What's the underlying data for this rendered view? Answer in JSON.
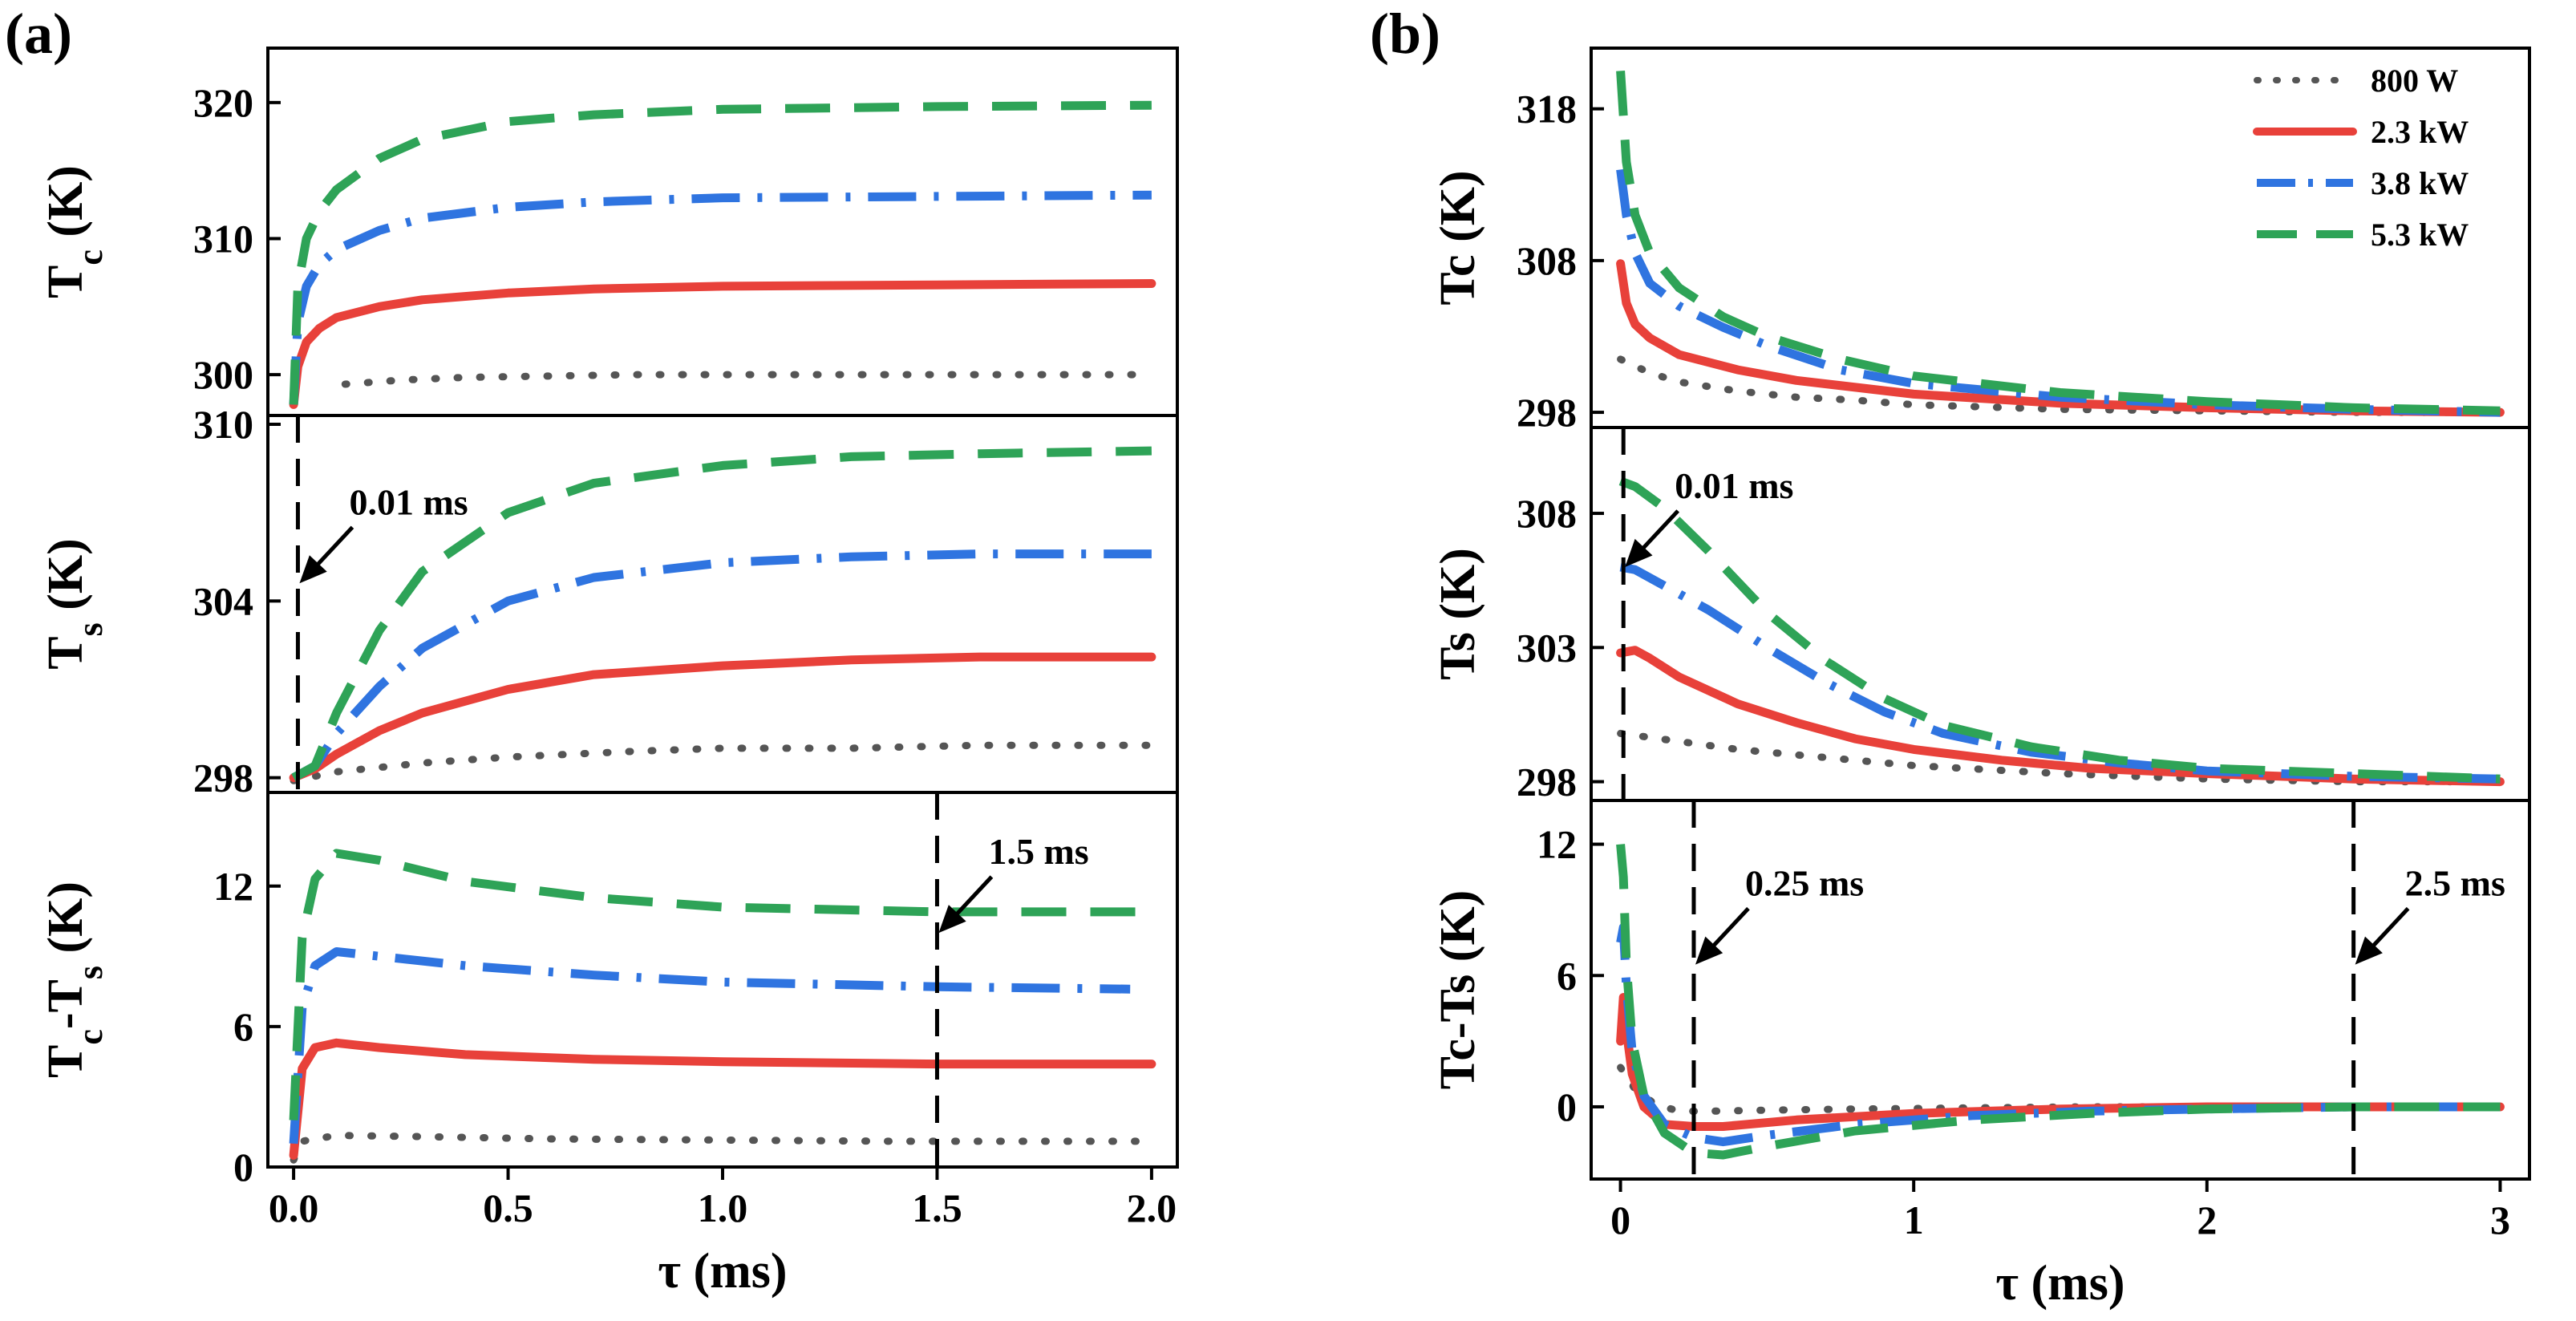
{
  "chart_data": [
    {
      "id": "a-top",
      "type": "line",
      "panel_label": "(a)",
      "ylabel_main": "T",
      "ylabel_sub": "c",
      "ylabel_unit": " (K)",
      "xlabel": "",
      "ylim": [
        297,
        324
      ],
      "xlim": [
        -0.06,
        2.06
      ],
      "yticks": [
        300,
        310,
        320
      ],
      "xticks": [],
      "xtick_labels": [],
      "series": [
        {
          "name": "800 W",
          "style": "dot",
          "color": "#555555",
          "x": [
            0.12,
            0.25,
            0.4,
            0.6,
            0.8,
            1.0,
            1.2,
            1.4,
            1.6,
            1.8,
            2.0
          ],
          "y": [
            299.3,
            299.6,
            299.8,
            299.9,
            300.0,
            300.0,
            300.0,
            300.0,
            300.0,
            300.0,
            300.0
          ]
        },
        {
          "name": "2.3 kW",
          "style": "solid",
          "color": "#e8413a",
          "x": [
            0.0,
            0.01,
            0.03,
            0.06,
            0.1,
            0.2,
            0.3,
            0.5,
            0.7,
            1.0,
            1.5,
            2.0
          ],
          "y": [
            297.8,
            300.6,
            302.4,
            303.4,
            304.2,
            305.0,
            305.5,
            306.0,
            306.3,
            306.5,
            306.6,
            306.7
          ]
        },
        {
          "name": "3.8 kW",
          "style": "dashdot",
          "color": "#2f74e0",
          "x": [
            0.0,
            0.01,
            0.03,
            0.06,
            0.1,
            0.2,
            0.3,
            0.5,
            0.7,
            1.0,
            1.5,
            2.0
          ],
          "y": [
            297.8,
            303.8,
            306.5,
            308.1,
            309.2,
            310.6,
            311.5,
            312.3,
            312.7,
            313.0,
            313.1,
            313.2
          ]
        },
        {
          "name": "5.3 kW",
          "style": "dash",
          "color": "#2ea357",
          "x": [
            0.0,
            0.01,
            0.03,
            0.06,
            0.1,
            0.2,
            0.3,
            0.5,
            0.7,
            1.0,
            1.5,
            2.0
          ],
          "y": [
            297.8,
            306.5,
            310.0,
            312.0,
            313.6,
            315.9,
            317.3,
            318.6,
            319.1,
            319.5,
            319.7,
            319.8
          ]
        }
      ]
    },
    {
      "id": "a-mid",
      "type": "line",
      "ylabel_main": "T",
      "ylabel_sub": "s",
      "ylabel_unit": " (K)",
      "xlabel": "",
      "ylim": [
        297.5,
        310.3
      ],
      "xlim": [
        -0.06,
        2.06
      ],
      "yticks": [
        298,
        304,
        310
      ],
      "xticks": [],
      "xtick_labels": [],
      "series": [
        {
          "name": "800 W",
          "style": "dot",
          "color": "#555555",
          "x": [
            0.0,
            0.1,
            0.3,
            0.5,
            0.8,
            1.0,
            1.3,
            1.6,
            2.0
          ],
          "y": [
            297.9,
            298.2,
            298.5,
            298.7,
            298.9,
            299.0,
            299.0,
            299.1,
            299.1
          ]
        },
        {
          "name": "2.3 kW",
          "style": "solid",
          "color": "#e8413a",
          "x": [
            0.0,
            0.05,
            0.1,
            0.2,
            0.3,
            0.5,
            0.7,
            1.0,
            1.3,
            1.6,
            2.0
          ],
          "y": [
            298.0,
            298.3,
            298.8,
            299.6,
            300.2,
            301.0,
            301.5,
            301.8,
            302.0,
            302.1,
            302.1
          ]
        },
        {
          "name": "3.8 kW",
          "style": "dashdot",
          "color": "#2f74e0",
          "x": [
            0.0,
            0.05,
            0.1,
            0.2,
            0.3,
            0.5,
            0.7,
            1.0,
            1.3,
            1.6,
            2.0
          ],
          "y": [
            298.0,
            298.4,
            299.5,
            301.1,
            302.4,
            304.0,
            304.8,
            305.3,
            305.5,
            305.6,
            305.6
          ]
        },
        {
          "name": "5.3 kW",
          "style": "dash",
          "color": "#2ea357",
          "x": [
            0.0,
            0.05,
            0.1,
            0.2,
            0.3,
            0.5,
            0.7,
            1.0,
            1.3,
            1.6,
            2.0
          ],
          "y": [
            298.0,
            298.4,
            300.2,
            303.0,
            305.0,
            307.0,
            308.0,
            308.6,
            308.9,
            309.0,
            309.1
          ]
        }
      ],
      "annotation": {
        "text": "0.01 ms",
        "vline_x": 0.01,
        "arrow_y": 304.6
      }
    },
    {
      "id": "a-bot",
      "type": "line",
      "ylabel_main": "T",
      "ylabel_sub": "c",
      "ylabel_mid": "-T",
      "ylabel_sub2": "s",
      "ylabel_unit": " (K)",
      "xlabel": "τ (ms)",
      "ylim": [
        0,
        16
      ],
      "xlim": [
        -0.06,
        2.06
      ],
      "yticks": [
        0,
        6,
        12
      ],
      "xticks": [
        0,
        0.5,
        1.0,
        1.5,
        2.0
      ],
      "xtick_labels": [
        "0.0",
        "0.5",
        "1.0",
        "1.5",
        "2.0"
      ],
      "series": [
        {
          "name": "800 W",
          "style": "dot",
          "color": "#555555",
          "x": [
            0.0,
            0.02,
            0.1,
            0.3,
            0.6,
            1.0,
            1.4,
            1.8,
            2.0
          ],
          "y": [
            0.3,
            1.1,
            1.35,
            1.3,
            1.2,
            1.15,
            1.1,
            1.1,
            1.1
          ]
        },
        {
          "name": "2.3 kW",
          "style": "solid",
          "color": "#e8413a",
          "x": [
            0.0,
            0.02,
            0.05,
            0.1,
            0.2,
            0.4,
            0.7,
            1.0,
            1.5,
            2.0
          ],
          "y": [
            0.5,
            4.2,
            5.1,
            5.3,
            5.1,
            4.8,
            4.6,
            4.5,
            4.4,
            4.4
          ]
        },
        {
          "name": "3.8 kW",
          "style": "dashdot",
          "color": "#2f74e0",
          "x": [
            0.0,
            0.02,
            0.05,
            0.1,
            0.2,
            0.4,
            0.7,
            1.0,
            1.5,
            1.95
          ],
          "y": [
            1.0,
            6.8,
            8.6,
            9.2,
            9.0,
            8.6,
            8.2,
            7.9,
            7.7,
            7.6
          ]
        },
        {
          "name": "5.3 kW",
          "style": "dash",
          "color": "#2ea357",
          "x": [
            0.0,
            0.02,
            0.05,
            0.1,
            0.2,
            0.4,
            0.7,
            1.0,
            1.5,
            2.0
          ],
          "y": [
            2.0,
            9.8,
            12.3,
            13.4,
            13.1,
            12.2,
            11.5,
            11.1,
            10.9,
            10.9
          ]
        }
      ],
      "annotation": {
        "text": "1.5 ms",
        "vline_x": 1.5,
        "arrow_y": 10.0
      }
    },
    {
      "id": "b-top",
      "type": "line",
      "panel_label": "(b)",
      "ylabel_main": "Tc",
      "ylabel_unit": " (K)",
      "xlabel": "",
      "ylim": [
        297,
        322
      ],
      "xlim": [
        -0.1,
        3.1
      ],
      "yticks": [
        298,
        308,
        318
      ],
      "xticks": [],
      "xtick_labels": [],
      "legend": {
        "placement": "top-right",
        "entries": [
          "800 W",
          "2.3 kW",
          "3.8 kW",
          "5.3 kW"
        ]
      },
      "series": [
        {
          "name": "800 W",
          "style": "dot",
          "color": "#555555",
          "x": [
            0.0,
            0.1,
            0.2,
            0.4,
            0.6,
            0.8,
            1.0,
            1.5,
            2.0,
            2.5,
            3.0
          ],
          "y": [
            301.5,
            300.6,
            300.0,
            299.4,
            299.0,
            298.8,
            298.5,
            298.2,
            298.1,
            298.0,
            298.0
          ]
        },
        {
          "name": "2.3 kW",
          "style": "solid",
          "color": "#e8413a",
          "x": [
            0.0,
            0.02,
            0.05,
            0.1,
            0.2,
            0.4,
            0.6,
            1.0,
            1.5,
            2.0,
            2.5,
            3.0
          ],
          "y": [
            307.8,
            305.2,
            303.8,
            302.9,
            301.8,
            300.8,
            300.1,
            299.2,
            298.6,
            298.3,
            298.1,
            298.0
          ]
        },
        {
          "name": "3.8 kW",
          "style": "dashdot",
          "color": "#2f74e0",
          "x": [
            0.0,
            0.02,
            0.05,
            0.1,
            0.2,
            0.35,
            0.5,
            0.75,
            1.0,
            1.5,
            2.0,
            2.5,
            3.0
          ],
          "y": [
            314.0,
            311.0,
            308.5,
            306.5,
            305.0,
            303.6,
            302.4,
            300.8,
            299.9,
            299.0,
            298.5,
            298.2,
            298.0
          ]
        },
        {
          "name": "5.3 kW",
          "style": "dash",
          "color": "#2ea357",
          "x": [
            0.0,
            0.02,
            0.05,
            0.1,
            0.2,
            0.35,
            0.5,
            0.75,
            1.0,
            1.5,
            2.0,
            2.5,
            3.0
          ],
          "y": [
            320.5,
            314.5,
            311.0,
            308.5,
            306.2,
            304.3,
            303.0,
            301.5,
            300.4,
            299.3,
            298.7,
            298.3,
            298.1
          ]
        }
      ]
    },
    {
      "id": "b-mid",
      "type": "line",
      "ylabel_main": "Ts",
      "ylabel_unit": " (K)",
      "xlabel": "",
      "ylim": [
        297.3,
        311.2
      ],
      "xlim": [
        -0.1,
        3.1
      ],
      "yticks": [
        298,
        303,
        308
      ],
      "xticks": [],
      "xtick_labels": [],
      "series": [
        {
          "name": "800 W",
          "style": "dot",
          "color": "#555555",
          "x": [
            0.0,
            0.2,
            0.4,
            0.7,
            1.0,
            1.5,
            2.0,
            2.5,
            3.0
          ],
          "y": [
            299.8,
            299.5,
            299.2,
            298.9,
            298.6,
            298.3,
            298.1,
            298.0,
            298.0
          ]
        },
        {
          "name": "2.3 kW",
          "style": "solid",
          "color": "#e8413a",
          "x": [
            0.0,
            0.05,
            0.1,
            0.2,
            0.4,
            0.6,
            0.8,
            1.0,
            1.3,
            1.6,
            2.0,
            2.5,
            3.0
          ],
          "y": [
            302.8,
            302.9,
            302.6,
            301.9,
            300.9,
            300.2,
            299.6,
            299.2,
            298.8,
            298.5,
            298.3,
            298.1,
            298.0
          ]
        },
        {
          "name": "3.8 kW",
          "style": "dashdot",
          "color": "#2f74e0",
          "x": [
            0.0,
            0.05,
            0.15,
            0.3,
            0.5,
            0.7,
            0.9,
            1.1,
            1.4,
            1.7,
            2.0,
            2.5,
            3.0
          ],
          "y": [
            306.0,
            305.9,
            305.3,
            304.4,
            303.0,
            301.7,
            300.6,
            299.8,
            299.1,
            298.7,
            298.4,
            298.2,
            298.1
          ]
        },
        {
          "name": "5.3 kW",
          "style": "dash",
          "color": "#2ea357",
          "x": [
            0.0,
            0.05,
            0.15,
            0.3,
            0.5,
            0.7,
            0.9,
            1.1,
            1.4,
            1.7,
            2.0,
            2.5,
            3.0
          ],
          "y": [
            309.2,
            309.0,
            308.2,
            306.6,
            304.3,
            302.5,
            301.1,
            300.1,
            299.3,
            298.8,
            298.5,
            298.3,
            298.1
          ]
        }
      ],
      "annotation": {
        "text": "0.01 ms",
        "vline_x": 0.01,
        "arrow_y": 306.0
      }
    },
    {
      "id": "b-bot",
      "type": "line",
      "ylabel_main": "Tc-Ts",
      "ylabel_unit": " (K)",
      "xlabel": "τ (ms)",
      "ylim": [
        -3.3,
        14
      ],
      "xlim": [
        -0.1,
        3.1
      ],
      "yticks": [
        0,
        6,
        12
      ],
      "xticks": [
        0,
        1,
        2,
        3
      ],
      "xtick_labels": [
        "0",
        "1",
        "2",
        "3"
      ],
      "series": [
        {
          "name": "800 W",
          "style": "dot",
          "color": "#555555",
          "x": [
            0.0,
            0.05,
            0.12,
            0.2,
            0.3,
            0.5,
            0.8,
            1.2,
            1.6,
            2.0,
            2.5,
            3.0
          ],
          "y": [
            1.8,
            0.8,
            0.1,
            -0.2,
            -0.2,
            -0.15,
            -0.1,
            -0.05,
            0.0,
            0.0,
            0.0,
            0.0
          ]
        },
        {
          "name": "2.3 kW",
          "style": "solid",
          "color": "#e8413a",
          "x": [
            0.0,
            0.01,
            0.02,
            0.04,
            0.08,
            0.15,
            0.25,
            0.35,
            0.6,
            1.0,
            1.5,
            2.0,
            2.5,
            3.0
          ],
          "y": [
            3.0,
            5.0,
            3.5,
            1.5,
            0.0,
            -0.8,
            -0.9,
            -0.9,
            -0.6,
            -0.3,
            -0.1,
            0.0,
            0.0,
            0.0
          ]
        },
        {
          "name": "3.8 kW",
          "style": "dashdot",
          "color": "#2f74e0",
          "x": [
            0.0,
            0.01,
            0.02,
            0.04,
            0.08,
            0.15,
            0.25,
            0.35,
            0.5,
            0.8,
            1.2,
            1.6,
            2.0,
            2.5,
            3.0
          ],
          "y": [
            7.5,
            8.2,
            5.5,
            2.5,
            0.5,
            -0.8,
            -1.4,
            -1.6,
            -1.3,
            -0.8,
            -0.4,
            -0.2,
            -0.1,
            0.0,
            0.0
          ]
        },
        {
          "name": "5.3 kW",
          "style": "dash",
          "color": "#2ea357",
          "x": [
            0.0,
            0.01,
            0.02,
            0.04,
            0.08,
            0.15,
            0.25,
            0.35,
            0.5,
            0.8,
            1.2,
            1.6,
            2.0,
            2.5,
            3.0
          ],
          "y": [
            12.0,
            10.5,
            6.5,
            3.0,
            0.5,
            -1.2,
            -2.1,
            -2.2,
            -1.8,
            -1.1,
            -0.6,
            -0.3,
            -0.1,
            0.0,
            0.0
          ]
        }
      ],
      "annotations": [
        {
          "text": "0.25 ms",
          "vline_x": 0.25,
          "arrow_y": 6.5
        },
        {
          "text": "2.5 ms",
          "vline_x": 2.5,
          "arrow_y": 6.5
        }
      ]
    }
  ]
}
